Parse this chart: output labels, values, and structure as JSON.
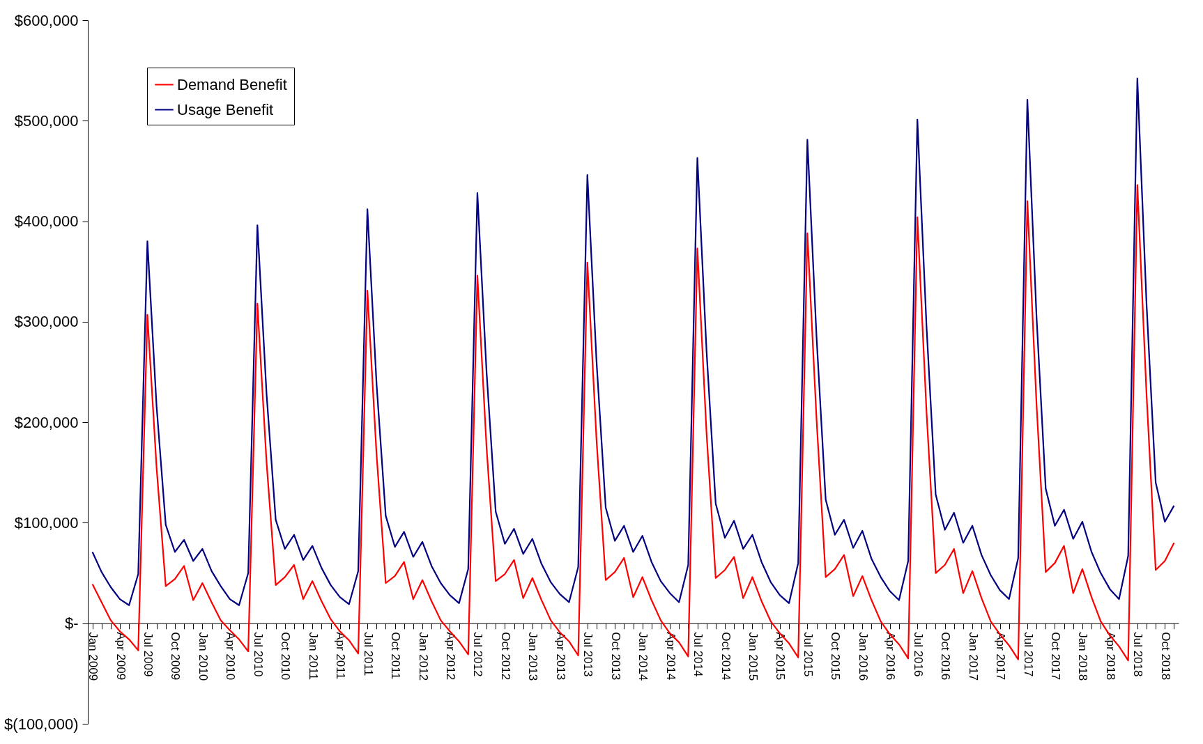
{
  "chart_data": {
    "type": "line",
    "categories": [
      "Jan 2009",
      null,
      null,
      "Apr 2009",
      null,
      null,
      "Jul 2009",
      null,
      null,
      "Oct 2009",
      null,
      null,
      "Jan 2010",
      null,
      null,
      "Apr 2010",
      null,
      null,
      "Jul 2010",
      null,
      null,
      "Oct 2010",
      null,
      null,
      "Jan 2011",
      null,
      null,
      "Apr 2011",
      null,
      null,
      "Jul 2011",
      null,
      null,
      "Oct 2011",
      null,
      null,
      "Jan 2012",
      null,
      null,
      "Apr 2012",
      null,
      null,
      "Jul 2012",
      null,
      null,
      "Oct 2012",
      null,
      null,
      "Jan 2013",
      null,
      null,
      "Apr 2013",
      null,
      null,
      "Jul 2013",
      null,
      null,
      "Oct 2013",
      null,
      null,
      "Jan 2014",
      null,
      null,
      "Apr 2014",
      null,
      null,
      "Jul 2014",
      null,
      null,
      "Oct 2014",
      null,
      null,
      "Jan 2015",
      null,
      null,
      "Apr 2015",
      null,
      null,
      "Jul 2015",
      null,
      null,
      "Oct 2015",
      null,
      null,
      "Jan 2016",
      null,
      null,
      "Apr 2016",
      null,
      null,
      "Jul 2016",
      null,
      null,
      "Oct 2016",
      null,
      null,
      "Jan 2017",
      null,
      null,
      "Apr 2017",
      null,
      null,
      "Jul 2017",
      null,
      null,
      "Oct 2017",
      null,
      null,
      "Jan 2018",
      null,
      null,
      "Apr 2018",
      null,
      null,
      "Jul 2018",
      null,
      null,
      "Oct 2018",
      null
    ],
    "series": [
      {
        "name": "Demand Benefit",
        "color": "#ff0000",
        "values": [
          39000,
          21000,
          3000,
          -8000,
          -16000,
          -27000,
          307000,
          155000,
          37000,
          44000,
          57000,
          23000,
          40000,
          21000,
          3000,
          -7000,
          -16000,
          -28000,
          318000,
          160000,
          38000,
          46000,
          58000,
          24000,
          42000,
          22000,
          4000,
          -8000,
          -17000,
          -30000,
          331000,
          168000,
          40000,
          47000,
          61000,
          24000,
          43000,
          22000,
          3000,
          -8000,
          -18000,
          -31000,
          346000,
          175000,
          42000,
          49000,
          63000,
          25000,
          45000,
          23000,
          3000,
          -9000,
          -18000,
          -32000,
          359000,
          182000,
          43000,
          51000,
          65000,
          26000,
          46000,
          23000,
          3000,
          -10000,
          -19000,
          -33000,
          373000,
          189000,
          45000,
          53000,
          66000,
          25000,
          46000,
          22000,
          2000,
          -10000,
          -20000,
          -34000,
          388000,
          203000,
          46000,
          54000,
          68000,
          27000,
          47000,
          23000,
          2000,
          -11000,
          -21000,
          -35000,
          404000,
          210000,
          50000,
          58000,
          74000,
          30000,
          52000,
          25000,
          2000,
          -11000,
          -22000,
          -36000,
          420000,
          218000,
          51000,
          60000,
          77000,
          30000,
          54000,
          26000,
          2000,
          -12000,
          -23000,
          -37000,
          436000,
          228000,
          53000,
          62000,
          80000
        ]
      },
      {
        "name": "Usage Benefit",
        "color": "#000080",
        "values": [
          71000,
          51000,
          36000,
          24000,
          18000,
          49000,
          380000,
          216000,
          98000,
          71000,
          83000,
          62000,
          74000,
          52000,
          37000,
          24000,
          18000,
          50000,
          396000,
          228000,
          103000,
          74000,
          88000,
          63000,
          77000,
          55000,
          38000,
          26000,
          19000,
          52000,
          412000,
          238000,
          107000,
          76000,
          91000,
          66000,
          81000,
          57000,
          40000,
          28000,
          20000,
          54000,
          428000,
          250000,
          111000,
          79000,
          94000,
          69000,
          84000,
          59000,
          41000,
          29000,
          21000,
          56000,
          446000,
          260000,
          115000,
          82000,
          97000,
          71000,
          87000,
          61000,
          42000,
          30000,
          21000,
          58000,
          463000,
          271000,
          119000,
          85000,
          102000,
          74000,
          88000,
          61000,
          41000,
          28000,
          20000,
          60000,
          481000,
          285000,
          123000,
          88000,
          103000,
          75000,
          92000,
          64000,
          46000,
          32000,
          23000,
          62000,
          501000,
          295000,
          128000,
          93000,
          110000,
          80000,
          97000,
          68000,
          48000,
          33000,
          24000,
          65000,
          521000,
          305000,
          134000,
          97000,
          113000,
          84000,
          101000,
          71000,
          50000,
          34000,
          24000,
          67000,
          542000,
          318000,
          140000,
          101000,
          117000
        ]
      }
    ],
    "ylim": [
      -100000,
      600000
    ],
    "yticks": [
      {
        "value": -100000,
        "label": "$(100,000)"
      },
      {
        "value": 0,
        "label": "$-"
      },
      {
        "value": 100000,
        "label": "$100,000"
      },
      {
        "value": 200000,
        "label": "$200,000"
      },
      {
        "value": 300000,
        "label": "$300,000"
      },
      {
        "value": 400000,
        "label": "$400,000"
      },
      {
        "value": 500000,
        "label": "$500,000"
      },
      {
        "value": 600000,
        "label": "$600,000"
      }
    ],
    "grid": false,
    "legend": "top left",
    "line_style": "solid",
    "marker": "none"
  }
}
